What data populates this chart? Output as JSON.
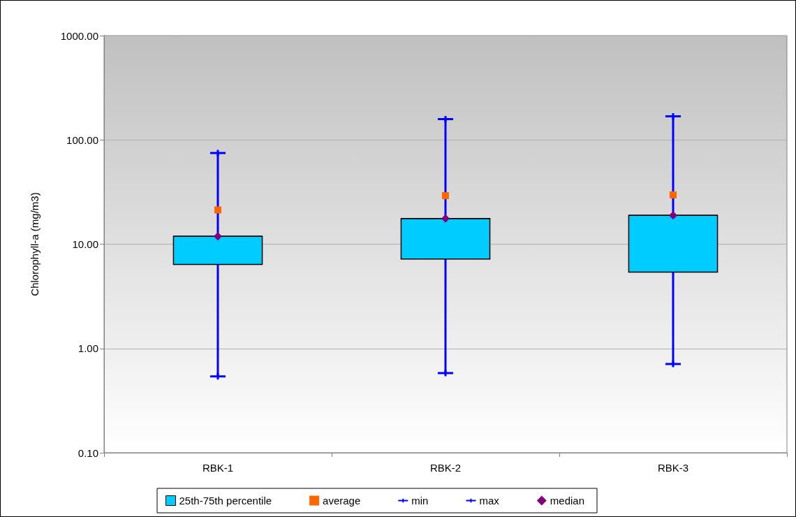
{
  "chart_data": {
    "type": "box",
    "ylabel": "Chlorophyll-a (mg/m3)",
    "categories": [
      "RBK-1",
      "RBK-2",
      "RBK-3"
    ],
    "series": [
      {
        "type": "box",
        "name": "25th-75th percentile",
        "color": "#00ccff",
        "boxes": [
          {
            "low": 0.54,
            "q1": 6.4,
            "median": 11.9,
            "q3": 11.9,
            "high": 75
          },
          {
            "low": 0.58,
            "q1": 7.2,
            "median": 17.6,
            "q3": 17.6,
            "high": 158
          },
          {
            "low": 0.71,
            "q1": 5.4,
            "median": 18.9,
            "q3": 18.9,
            "high": 168
          }
        ]
      },
      {
        "type": "scatter",
        "name": "average",
        "color": "#ff6600",
        "marker": "square",
        "x": [
          "RBK-1",
          "RBK-2",
          "RBK-3"
        ],
        "values": [
          21.3,
          29.2,
          29.7
        ]
      },
      {
        "type": "scatter",
        "name": "min",
        "color": "#0000ff",
        "x": [
          "RBK-1",
          "RBK-2",
          "RBK-3"
        ],
        "values": [
          0.54,
          0.58,
          0.71
        ]
      },
      {
        "type": "scatter",
        "name": "max",
        "color": "#0000ff",
        "x": [
          "RBK-1",
          "RBK-2",
          "RBK-3"
        ],
        "values": [
          75,
          158,
          168
        ]
      },
      {
        "type": "scatter",
        "name": "median",
        "color": "#800080",
        "marker": "diamond",
        "x": [
          "RBK-1",
          "RBK-2",
          "RBK-3"
        ],
        "values": [
          11.9,
          17.6,
          18.9
        ]
      }
    ],
    "log": "y",
    "ylim": [
      0.1,
      1000
    ],
    "yticks": [
      {
        "value": 0.1,
        "label": "0.10"
      },
      {
        "value": 1,
        "label": "1.00"
      },
      {
        "value": 10,
        "label": "10.00"
      },
      {
        "value": 100,
        "label": "100.00"
      },
      {
        "value": 1000,
        "label": "1000.00"
      }
    ],
    "grid": "y",
    "legend": "bottom"
  }
}
